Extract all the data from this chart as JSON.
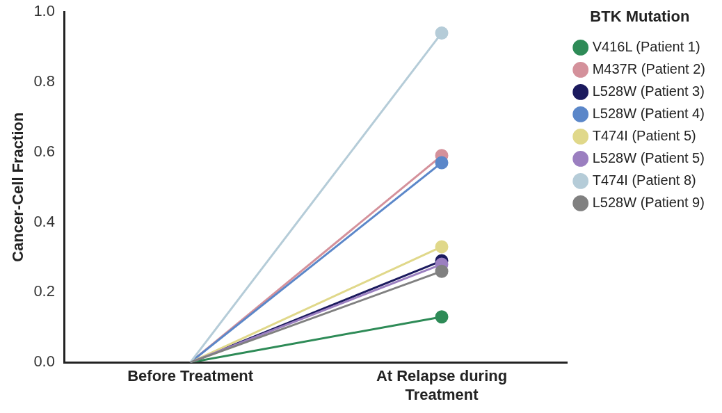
{
  "chart_data": {
    "type": "line",
    "ylabel": "Cancer-Cell Fraction",
    "legend_title": "BTK Mutation",
    "categories": [
      "Before Treatment",
      "At Relapse during Treatment"
    ],
    "series": [
      {
        "name": "V416L (Patient 1)",
        "color": "#2e8b57",
        "values": [
          0,
          0.13
        ]
      },
      {
        "name": "M437R (Patient 2)",
        "color": "#d4919b",
        "values": [
          0,
          0.59
        ]
      },
      {
        "name": "L528W (Patient 3)",
        "color": "#1b1a5e",
        "values": [
          0,
          0.29
        ]
      },
      {
        "name": "L528W (Patient 4)",
        "color": "#5b87c9",
        "values": [
          0,
          0.57
        ]
      },
      {
        "name": "T474I (Patient 5)",
        "color": "#e0d88a",
        "values": [
          0,
          0.33
        ]
      },
      {
        "name": "L528W (Patient 5)",
        "color": "#9b7fc0",
        "values": [
          0,
          0.28
        ]
      },
      {
        "name": "T474I (Patient 8)",
        "color": "#b5ccd8",
        "values": [
          0,
          0.94
        ]
      },
      {
        "name": "L528W (Patient 9)",
        "color": "#808080",
        "values": [
          0,
          0.26
        ]
      }
    ],
    "ylim": [
      0,
      1
    ],
    "yticks": [
      {
        "value": 0,
        "label": "0.0"
      },
      {
        "value": 0.2,
        "label": "0.2"
      },
      {
        "value": 0.4,
        "label": "0.4"
      },
      {
        "value": 0.6,
        "label": "0.6"
      },
      {
        "value": 0.8,
        "label": "0.8"
      },
      {
        "value": 1,
        "label": "1.0"
      }
    ],
    "grid": false,
    "legend": "right",
    "marker": "circle",
    "line_style": "solid"
  }
}
